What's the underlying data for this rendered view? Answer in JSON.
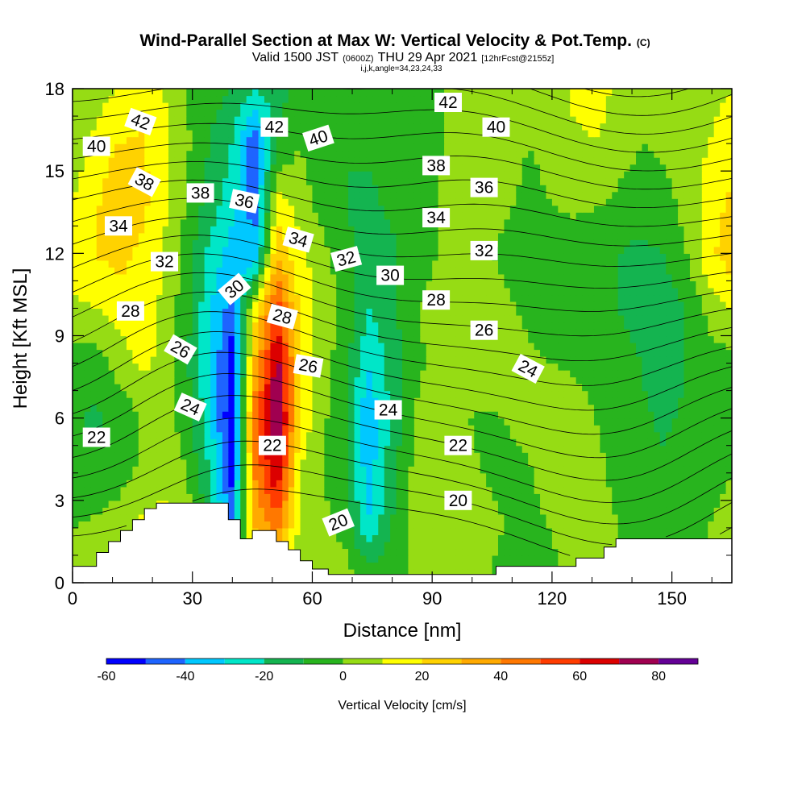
{
  "chart_data": {
    "type": "heatmap",
    "title": "Wind-Parallel Section at Max W: Vertical Velocity & Pot.Temp.",
    "title_mark": "(C)",
    "subtitle_parts": [
      "Valid 1500 JST",
      "(0600Z)",
      "THU 29 Apr 2021",
      "[12hrFcst@2155z]"
    ],
    "subtitle2": "i,j,k,angle=34,23,24,33",
    "xlabel": "Distance [nm]",
    "ylabel": "Height [Kft MSL]",
    "xlim": [
      0,
      165
    ],
    "ylim": [
      0,
      18
    ],
    "xticks": [
      0,
      30,
      60,
      90,
      120,
      150
    ],
    "yticks": [
      0,
      3,
      6,
      9,
      12,
      15,
      18
    ],
    "colorbar": {
      "label": "Vertical Velocity [cm/s]",
      "ticks": [
        -60,
        -40,
        -20,
        0,
        20,
        40,
        60,
        80
      ],
      "range": [
        -60,
        90
      ],
      "colors": [
        "#0000ff",
        "#1e64ff",
        "#00c8ff",
        "#00e6c8",
        "#14b450",
        "#28b41e",
        "#96dc14",
        "#ffff00",
        "#ffd200",
        "#ffaa00",
        "#ff7800",
        "#ff3c00",
        "#dc0000",
        "#a00050",
        "#640096"
      ]
    },
    "terrain_top": [
      [
        0,
        0.6
      ],
      [
        6,
        0.6
      ],
      [
        6,
        1.1
      ],
      [
        9,
        1.1
      ],
      [
        9,
        1.5
      ],
      [
        12,
        1.5
      ],
      [
        12,
        1.9
      ],
      [
        15,
        1.9
      ],
      [
        15,
        2.3
      ],
      [
        18,
        2.3
      ],
      [
        18,
        2.7
      ],
      [
        21,
        2.7
      ],
      [
        21,
        2.9
      ],
      [
        39,
        2.9
      ],
      [
        39,
        2.3
      ],
      [
        42,
        2.3
      ],
      [
        42,
        1.6
      ],
      [
        45,
        1.6
      ],
      [
        45,
        1.9
      ],
      [
        51,
        1.9
      ],
      [
        51,
        1.5
      ],
      [
        54,
        1.5
      ],
      [
        54,
        1.2
      ],
      [
        57,
        1.2
      ],
      [
        57,
        0.8
      ],
      [
        60,
        0.8
      ],
      [
        60,
        0.5
      ],
      [
        64,
        0.5
      ],
      [
        64,
        0.3
      ],
      [
        106,
        0.3
      ],
      [
        106,
        0.6
      ],
      [
        126,
        0.6
      ],
      [
        126,
        0.9
      ],
      [
        133,
        0.9
      ],
      [
        133,
        1.3
      ],
      [
        136,
        1.3
      ],
      [
        136,
        1.6
      ],
      [
        165,
        1.6
      ]
    ],
    "w_field": [
      [
        0,
        3,
        8,
        14,
        10,
        12,
        5,
        2,
        0,
        4,
        8,
        10,
        6,
        0,
        -3,
        0,
        6,
        8,
        2,
        -5,
        -8,
        -4,
        3,
        5,
        2,
        -6,
        -8,
        -4,
        0,
        2
      ],
      [
        0,
        2,
        6,
        12,
        15,
        8,
        -10,
        -40,
        30,
        45,
        6,
        4,
        -4,
        -30,
        -10,
        4,
        8,
        10,
        6,
        0,
        -4,
        0,
        6,
        3,
        0,
        -6,
        -8,
        -4,
        0,
        2
      ],
      [
        -6,
        -8,
        -5,
        2,
        6,
        0,
        -20,
        -55,
        40,
        70,
        10,
        0,
        -10,
        -35,
        -15,
        2,
        8,
        4,
        0,
        -4,
        -2,
        6,
        8,
        2,
        -2,
        -6,
        -8,
        -6,
        -2,
        0
      ],
      [
        -8,
        -12,
        -8,
        0,
        4,
        -4,
        -25,
        -60,
        45,
        85,
        18,
        2,
        -8,
        -40,
        -18,
        0,
        6,
        2,
        -2,
        0,
        4,
        8,
        6,
        0,
        -4,
        -8,
        -12,
        -8,
        -4,
        0
      ],
      [
        -4,
        -6,
        4,
        12,
        8,
        -8,
        -30,
        -55,
        30,
        75,
        20,
        4,
        -6,
        -30,
        -16,
        -2,
        2,
        6,
        10,
        6,
        2,
        0,
        -2,
        -4,
        -6,
        -10,
        -16,
        -10,
        -6,
        -2
      ],
      [
        8,
        10,
        14,
        16,
        8,
        -6,
        -28,
        -45,
        15,
        55,
        18,
        6,
        -2,
        -20,
        -14,
        -2,
        4,
        8,
        6,
        2,
        -2,
        -4,
        -6,
        -8,
        -10,
        -14,
        -16,
        -10,
        4,
        10
      ],
      [
        16,
        20,
        24,
        18,
        10,
        -4,
        -22,
        -35,
        -40,
        30,
        12,
        4,
        -8,
        -14,
        -12,
        -6,
        0,
        4,
        2,
        -2,
        -4,
        -6,
        -8,
        -8,
        -10,
        -12,
        -10,
        0,
        18,
        26
      ],
      [
        10,
        18,
        28,
        24,
        12,
        0,
        -14,
        -25,
        -45,
        12,
        6,
        -6,
        -10,
        -12,
        -8,
        -4,
        0,
        4,
        6,
        2,
        -2,
        0,
        4,
        2,
        -2,
        -6,
        -4,
        4,
        14,
        22
      ],
      [
        4,
        12,
        20,
        22,
        14,
        2,
        -10,
        -20,
        -50,
        -10,
        0,
        -10,
        -10,
        -8,
        -6,
        -6,
        -2,
        4,
        8,
        4,
        0,
        2,
        8,
        10,
        6,
        0,
        2,
        6,
        10,
        14
      ],
      [
        2,
        6,
        10,
        14,
        10,
        0,
        -6,
        -10,
        -20,
        -15,
        -4,
        -8,
        -8,
        -8,
        -8,
        -8,
        -2,
        4,
        6,
        4,
        2,
        4,
        12,
        14,
        8,
        2,
        4,
        6,
        8,
        10
      ]
    ],
    "theta_levels": [
      20,
      21,
      22,
      23,
      24,
      25,
      26,
      27,
      28,
      29,
      30,
      31,
      32,
      33,
      34,
      35,
      36,
      37,
      38,
      39,
      40,
      41,
      42,
      43,
      44
    ],
    "contour_labels": [
      {
        "text": "42",
        "x": 17,
        "y": 16.8,
        "angle": 20
      },
      {
        "text": "40",
        "x": 6,
        "y": 15.9,
        "angle": 0
      },
      {
        "text": "38",
        "x": 18,
        "y": 14.6,
        "angle": 28
      },
      {
        "text": "34",
        "x": 11.5,
        "y": 13.0,
        "angle": 0
      },
      {
        "text": "32",
        "x": 23,
        "y": 11.7,
        "angle": 0
      },
      {
        "text": "28",
        "x": 14.5,
        "y": 9.9,
        "angle": 0
      },
      {
        "text": "26",
        "x": 27,
        "y": 8.5,
        "angle": 30
      },
      {
        "text": "24",
        "x": 29.5,
        "y": 6.4,
        "angle": 24
      },
      {
        "text": "22",
        "x": 6,
        "y": 5.3,
        "angle": 0
      },
      {
        "text": "38",
        "x": 32,
        "y": 14.2,
        "angle": 0
      },
      {
        "text": "36",
        "x": 43,
        "y": 13.9,
        "angle": 12
      },
      {
        "text": "30",
        "x": 40.5,
        "y": 10.7,
        "angle": -40
      },
      {
        "text": "42",
        "x": 50.5,
        "y": 16.6,
        "angle": 0
      },
      {
        "text": "40",
        "x": 61.5,
        "y": 16.2,
        "angle": -18
      },
      {
        "text": "34",
        "x": 56.5,
        "y": 12.5,
        "angle": 16
      },
      {
        "text": "28",
        "x": 52.5,
        "y": 9.7,
        "angle": 15
      },
      {
        "text": "26",
        "x": 59,
        "y": 7.9,
        "angle": 10
      },
      {
        "text": "32",
        "x": 68.5,
        "y": 11.8,
        "angle": -15
      },
      {
        "text": "30",
        "x": 79.5,
        "y": 11.2,
        "angle": 0
      },
      {
        "text": "22",
        "x": 50,
        "y": 5.0,
        "angle": 0
      },
      {
        "text": "24",
        "x": 79,
        "y": 6.3,
        "angle": 0
      },
      {
        "text": "20",
        "x": 66.5,
        "y": 2.2,
        "angle": -22
      },
      {
        "text": "42",
        "x": 94,
        "y": 17.5,
        "angle": 0
      },
      {
        "text": "40",
        "x": 106,
        "y": 16.6,
        "angle": 0
      },
      {
        "text": "38",
        "x": 91,
        "y": 15.2,
        "angle": 0
      },
      {
        "text": "36",
        "x": 103,
        "y": 14.4,
        "angle": 0
      },
      {
        "text": "34",
        "x": 91,
        "y": 13.3,
        "angle": 0
      },
      {
        "text": "32",
        "x": 103,
        "y": 12.1,
        "angle": 0
      },
      {
        "text": "28",
        "x": 91,
        "y": 10.3,
        "angle": 0
      },
      {
        "text": "26",
        "x": 103,
        "y": 9.2,
        "angle": 0
      },
      {
        "text": "24",
        "x": 114,
        "y": 7.8,
        "angle": 28
      },
      {
        "text": "22",
        "x": 96.5,
        "y": 5.0,
        "angle": 0
      },
      {
        "text": "20",
        "x": 96.5,
        "y": 3.0,
        "angle": 0
      }
    ]
  }
}
